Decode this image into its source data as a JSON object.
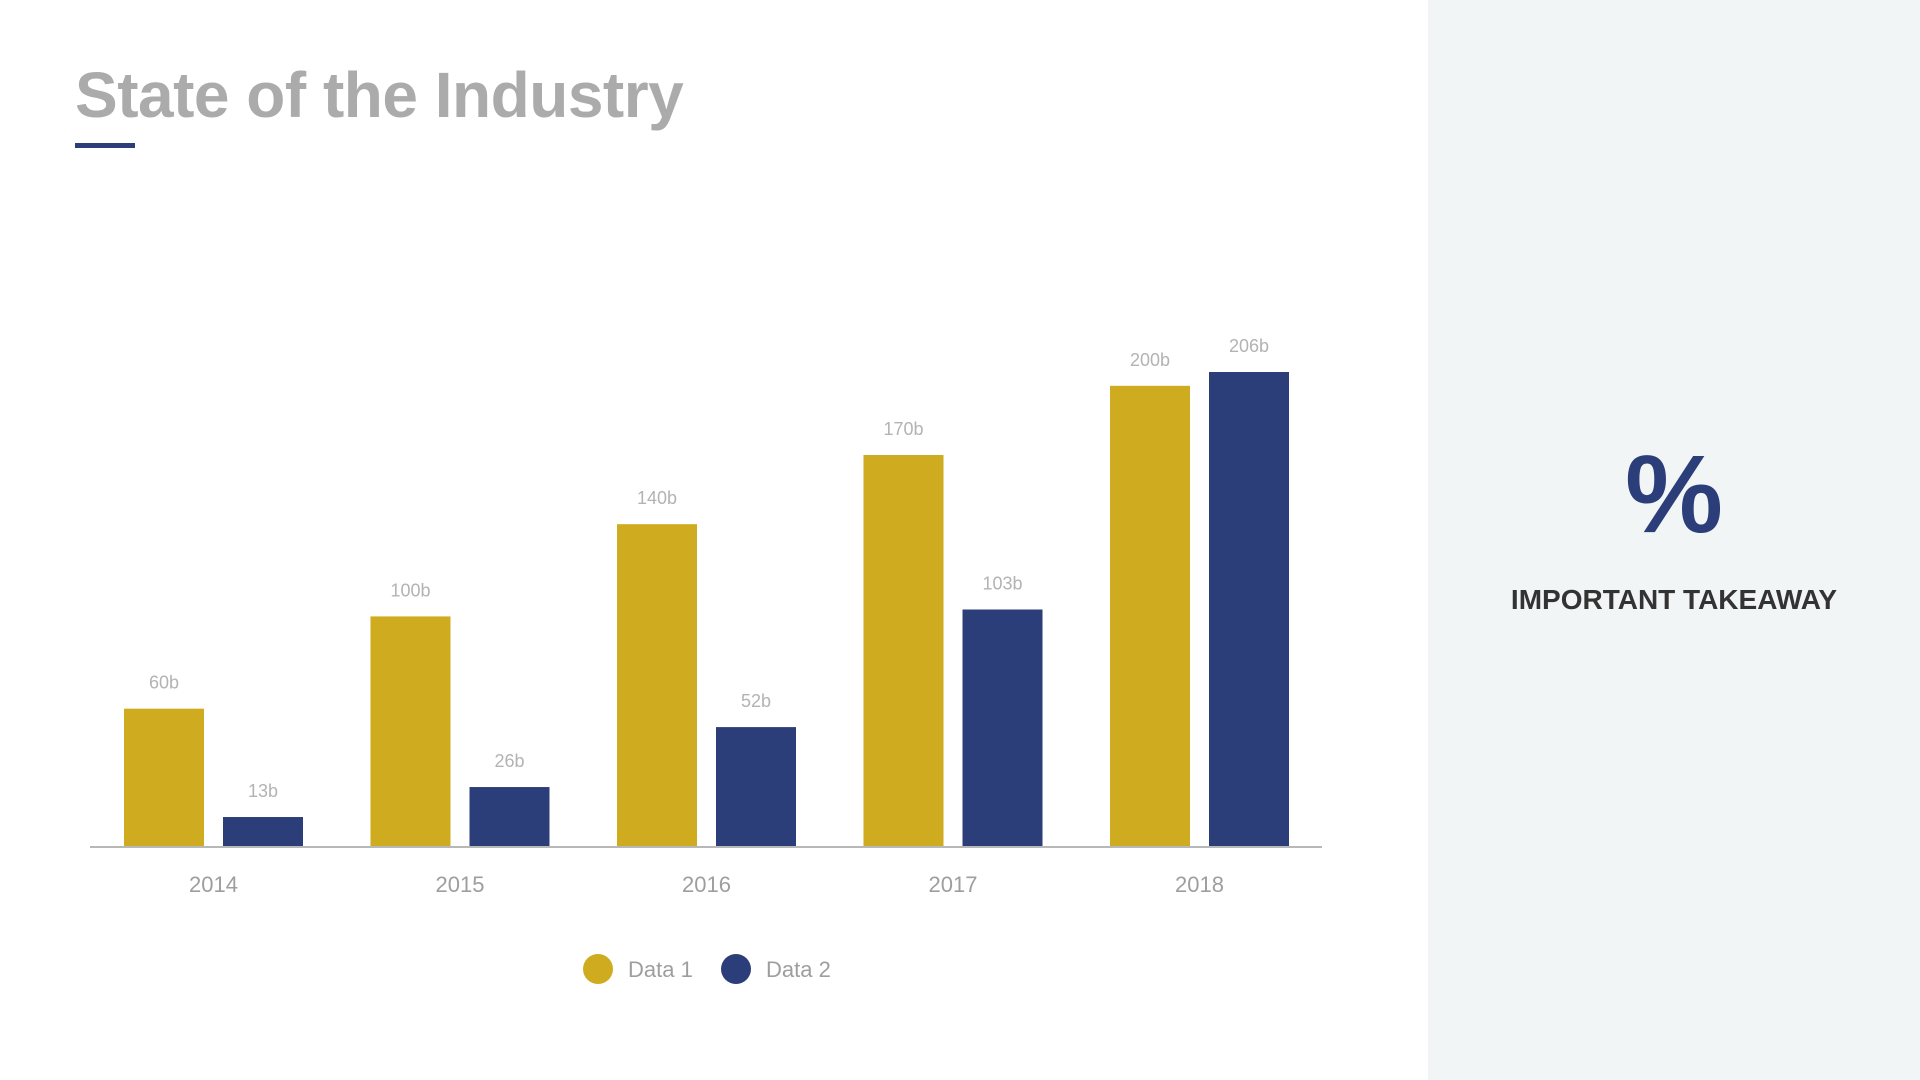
{
  "slide": {
    "title": "State of the Industry"
  },
  "side_panel": {
    "symbol": "%",
    "takeaway": "IMPORTANT TAKEAWAY"
  },
  "colors": {
    "data1": "#cfab1f",
    "data2": "#2c3e7a",
    "axis": "#b8b8b8"
  },
  "chart_data": {
    "type": "bar",
    "title": "",
    "xlabel": "",
    "ylabel": "",
    "categories": [
      "2014",
      "2015",
      "2016",
      "2017",
      "2018"
    ],
    "series": [
      {
        "name": "Data 1",
        "values": [
          60,
          100,
          140,
          170,
          200
        ],
        "labels": [
          "60b",
          "100b",
          "140b",
          "170b",
          "200b"
        ]
      },
      {
        "name": "Data 2",
        "values": [
          13,
          26,
          52,
          103,
          206
        ],
        "labels": [
          "13b",
          "26b",
          "52b",
          "103b",
          "206b"
        ]
      }
    ],
    "ylim": [
      0,
      206
    ],
    "grid": false,
    "legend": "bottom-center"
  }
}
